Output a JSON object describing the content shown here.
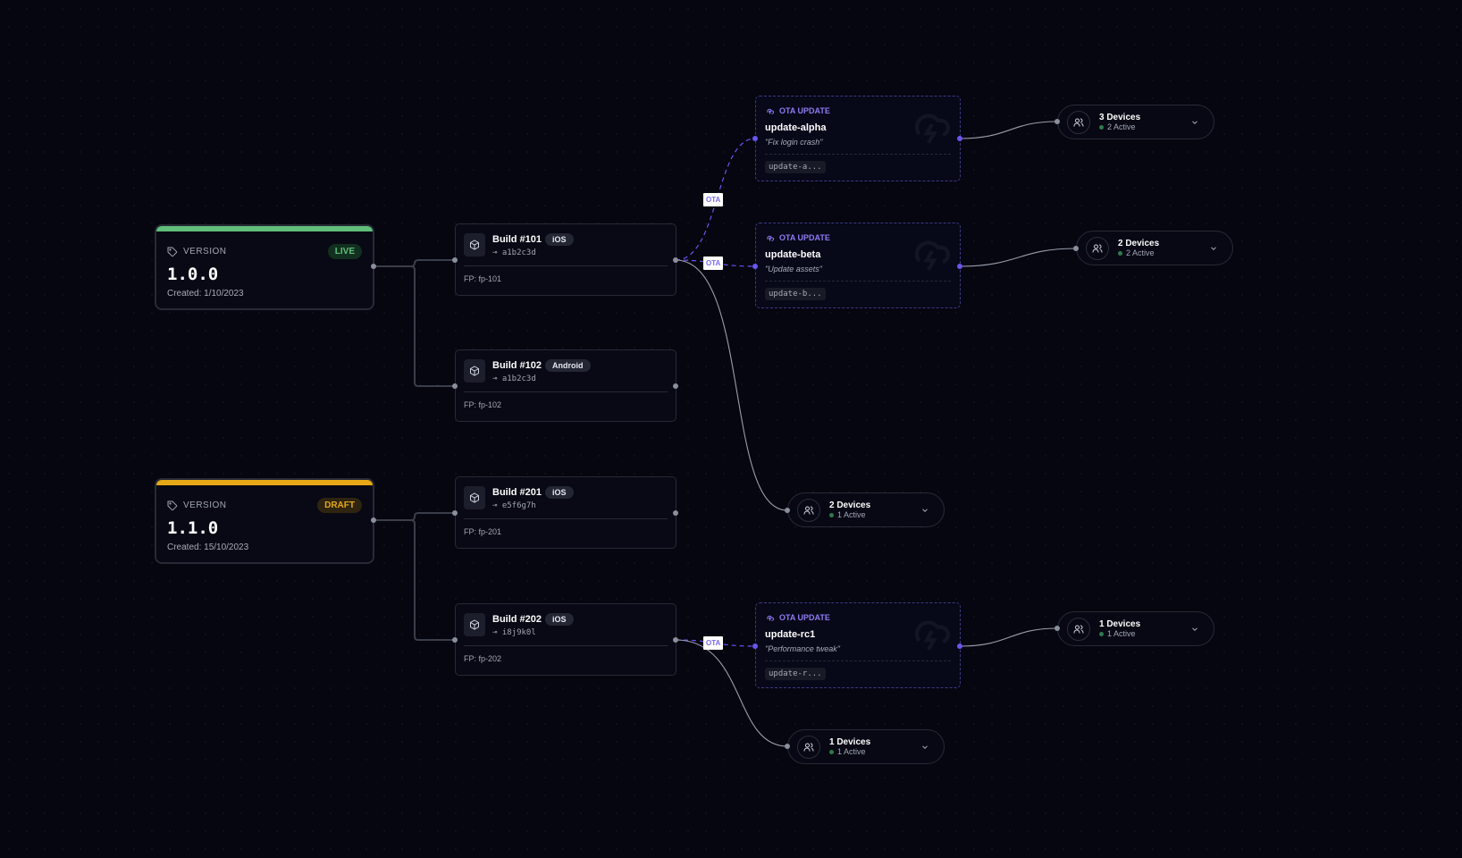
{
  "colors": {
    "live": "#5fbf7a",
    "draft": "#e6a817",
    "ota_accent": "#8d7cf4",
    "background": "#05060f"
  },
  "versions": [
    {
      "kind": "VERSION",
      "status": "LIVE",
      "number": "1.0.0",
      "created": "Created: 1/10/2023",
      "icon": "tag-icon"
    },
    {
      "kind": "VERSION",
      "status": "DRAFT",
      "number": "1.1.0",
      "created": "Created: 15/10/2023",
      "icon": "tag-icon"
    }
  ],
  "builds": [
    {
      "title": "Build #101",
      "platform": "iOS",
      "commit": "a1b2c3d",
      "fp": "FP: fp-101"
    },
    {
      "title": "Build #102",
      "platform": "Android",
      "commit": "a1b2c3d",
      "fp": "FP: fp-102"
    },
    {
      "title": "Build #201",
      "platform": "iOS",
      "commit": "e5f6g7h",
      "fp": "FP: fp-201"
    },
    {
      "title": "Build #202",
      "platform": "iOS",
      "commit": "i8j9k0l",
      "fp": "FP: fp-202"
    }
  ],
  "ota_updates": [
    {
      "header": "OTA UPDATE",
      "name": "update-alpha",
      "message": "\"Fix login crash\"",
      "id": "update-a..."
    },
    {
      "header": "OTA UPDATE",
      "name": "update-beta",
      "message": "\"Update assets\"",
      "id": "update-b..."
    },
    {
      "header": "OTA UPDATE",
      "name": "update-rc1",
      "message": "\"Performance tweak\"",
      "id": "update-r..."
    }
  ],
  "device_groups": [
    {
      "count": "3 Devices",
      "active": "2 Active"
    },
    {
      "count": "2 Devices",
      "active": "2 Active"
    },
    {
      "count": "2 Devices",
      "active": "1 Active"
    },
    {
      "count": "1 Devices",
      "active": "1 Active"
    },
    {
      "count": "1 Devices",
      "active": "1 Active"
    }
  ],
  "edge_label": "OTA"
}
